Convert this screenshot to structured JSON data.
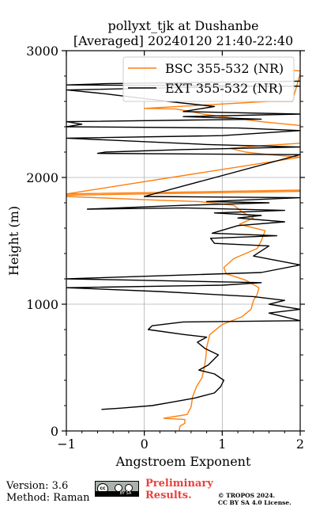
{
  "chart_data": {
    "type": "line",
    "title": "pollyxt_tjk at Dushanbe",
    "subtitle": "[Averaged] 20240120 21:40-22:40",
    "xlabel": "Angstroem Exponent",
    "ylabel": "Height (m)",
    "xlim": [
      -1,
      2
    ],
    "ylim": [
      0,
      3000
    ],
    "xticks": [
      "−1",
      "0",
      "1",
      "2"
    ],
    "yticks": [
      "0",
      "1000",
      "2000",
      "3000"
    ],
    "grid": true,
    "legend_position": "top-right",
    "series": [
      {
        "name": "BSC 355-532 (NR)",
        "color": "#ff7f0e",
        "points": [
          [
            0.45,
            0
          ],
          [
            0.45,
            20
          ],
          [
            0.46,
            40
          ],
          [
            0.52,
            60
          ],
          [
            0.52,
            90
          ],
          [
            0.25,
            100
          ],
          [
            0.55,
            130
          ],
          [
            0.6,
            190
          ],
          [
            0.62,
            270
          ],
          [
            0.67,
            350
          ],
          [
            0.74,
            420
          ],
          [
            0.77,
            500
          ],
          [
            0.79,
            580
          ],
          [
            0.8,
            660
          ],
          [
            0.84,
            760
          ],
          [
            1.0,
            840
          ],
          [
            1.25,
            900
          ],
          [
            1.37,
            960
          ],
          [
            1.4,
            1030
          ],
          [
            1.45,
            1080
          ],
          [
            1.47,
            1130
          ],
          [
            1.3,
            1190
          ],
          [
            1.05,
            1240
          ],
          [
            1.02,
            1290
          ],
          [
            1.15,
            1360
          ],
          [
            1.45,
            1440
          ],
          [
            1.5,
            1500
          ],
          [
            1.55,
            1580
          ],
          [
            1.22,
            1630
          ],
          [
            1.4,
            1680
          ],
          [
            1.25,
            1730
          ],
          [
            1.15,
            1780
          ],
          [
            0.7,
            1810
          ],
          [
            0.2,
            1820
          ],
          [
            -1.0,
            1850
          ],
          [
            -1.0,
            1860
          ],
          [
            2.0,
            1890
          ],
          [
            2.0,
            1900
          ],
          [
            -1.0,
            1870
          ],
          [
            2.0,
            2160
          ],
          [
            1.6,
            2180
          ],
          [
            1.3,
            2200
          ],
          [
            1.1,
            2230
          ],
          [
            1.5,
            2250
          ],
          [
            2.0,
            2270
          ],
          [
            2.0,
            2410
          ],
          [
            1.5,
            2440
          ],
          [
            1.0,
            2480
          ],
          [
            0.75,
            2500
          ],
          [
            0.6,
            2520
          ],
          [
            0.4,
            2540
          ],
          [
            0.0,
            2545
          ],
          [
            1.6,
            2600
          ],
          [
            1.9,
            2600
          ],
          [
            2.0,
            2820
          ],
          [
            2.0,
            2840
          ],
          [
            1.9,
            2845
          ]
        ]
      },
      {
        "name": "EXT 355-532 (NR)",
        "color": "#000000",
        "points": [
          [
            -0.55,
            170
          ],
          [
            -0.3,
            180
          ],
          [
            0.1,
            200
          ],
          [
            0.38,
            230
          ],
          [
            0.65,
            260
          ],
          [
            0.9,
            300
          ],
          [
            0.98,
            350
          ],
          [
            1.02,
            400
          ],
          [
            0.9,
            450
          ],
          [
            0.7,
            480
          ],
          [
            0.82,
            520
          ],
          [
            0.95,
            600
          ],
          [
            0.78,
            650
          ],
          [
            0.68,
            700
          ],
          [
            0.8,
            740
          ],
          [
            0.52,
            760
          ],
          [
            0.05,
            800
          ],
          [
            0.1,
            830
          ],
          [
            0.5,
            860
          ],
          [
            2.0,
            870
          ],
          [
            1.6,
            930
          ],
          [
            2.0,
            960
          ],
          [
            1.6,
            1000
          ],
          [
            1.8,
            1030
          ],
          [
            1.4,
            1060
          ],
          [
            0.2,
            1100
          ],
          [
            -1.0,
            1130
          ],
          [
            1.0,
            1150
          ],
          [
            1.5,
            1170
          ],
          [
            -1.0,
            1200
          ],
          [
            1.5,
            1250
          ],
          [
            2.0,
            1310
          ],
          [
            1.4,
            1380
          ],
          [
            1.6,
            1460
          ],
          [
            0.9,
            1480
          ],
          [
            0.85,
            1520
          ],
          [
            1.7,
            1540
          ],
          [
            0.87,
            1560
          ],
          [
            1.2,
            1620
          ],
          [
            1.8,
            1650
          ],
          [
            1.2,
            1680
          ],
          [
            1.5,
            1700
          ],
          [
            0.9,
            1720
          ],
          [
            1.8,
            1740
          ],
          [
            0.5,
            1760
          ],
          [
            -0.73,
            1750
          ],
          [
            0.5,
            1780
          ],
          [
            1.6,
            1800
          ],
          [
            0.8,
            1810
          ],
          [
            2.0,
            1840
          ],
          [
            0.0,
            1850
          ],
          [
            2.0,
            2180
          ],
          [
            -0.6,
            2190
          ],
          [
            -0.5,
            2200
          ],
          [
            0.5,
            2220
          ],
          [
            2.0,
            2240
          ],
          [
            0.8,
            2260
          ],
          [
            -1.0,
            2310
          ],
          [
            1.0,
            2330
          ],
          [
            2.0,
            2370
          ],
          [
            1.2,
            2390
          ],
          [
            -1.0,
            2400
          ],
          [
            -0.8,
            2420
          ],
          [
            -1.0,
            2440
          ],
          [
            1.5,
            2460
          ],
          [
            0.5,
            2480
          ],
          [
            2.0,
            2500
          ],
          [
            0.5,
            2520
          ],
          [
            0.9,
            2560
          ],
          [
            0.3,
            2600
          ],
          [
            -0.5,
            2660
          ],
          [
            -0.99,
            2690
          ],
          [
            0.5,
            2710
          ],
          [
            2.0,
            2720
          ],
          [
            -0.99,
            2730
          ],
          [
            -0.5,
            2740
          ],
          [
            2.0,
            2760
          ]
        ]
      }
    ]
  },
  "footer": {
    "version": "Version: 3.6",
    "method": "Method: Raman",
    "preliminary_line1": "Preliminary",
    "preliminary_line2": "Results.",
    "copyright": "© TROPOS 2024.",
    "license": "CC BY SA 4.0 License.",
    "cc_badge_text": "BY   SA",
    "cc_badge_logo": "cc"
  }
}
